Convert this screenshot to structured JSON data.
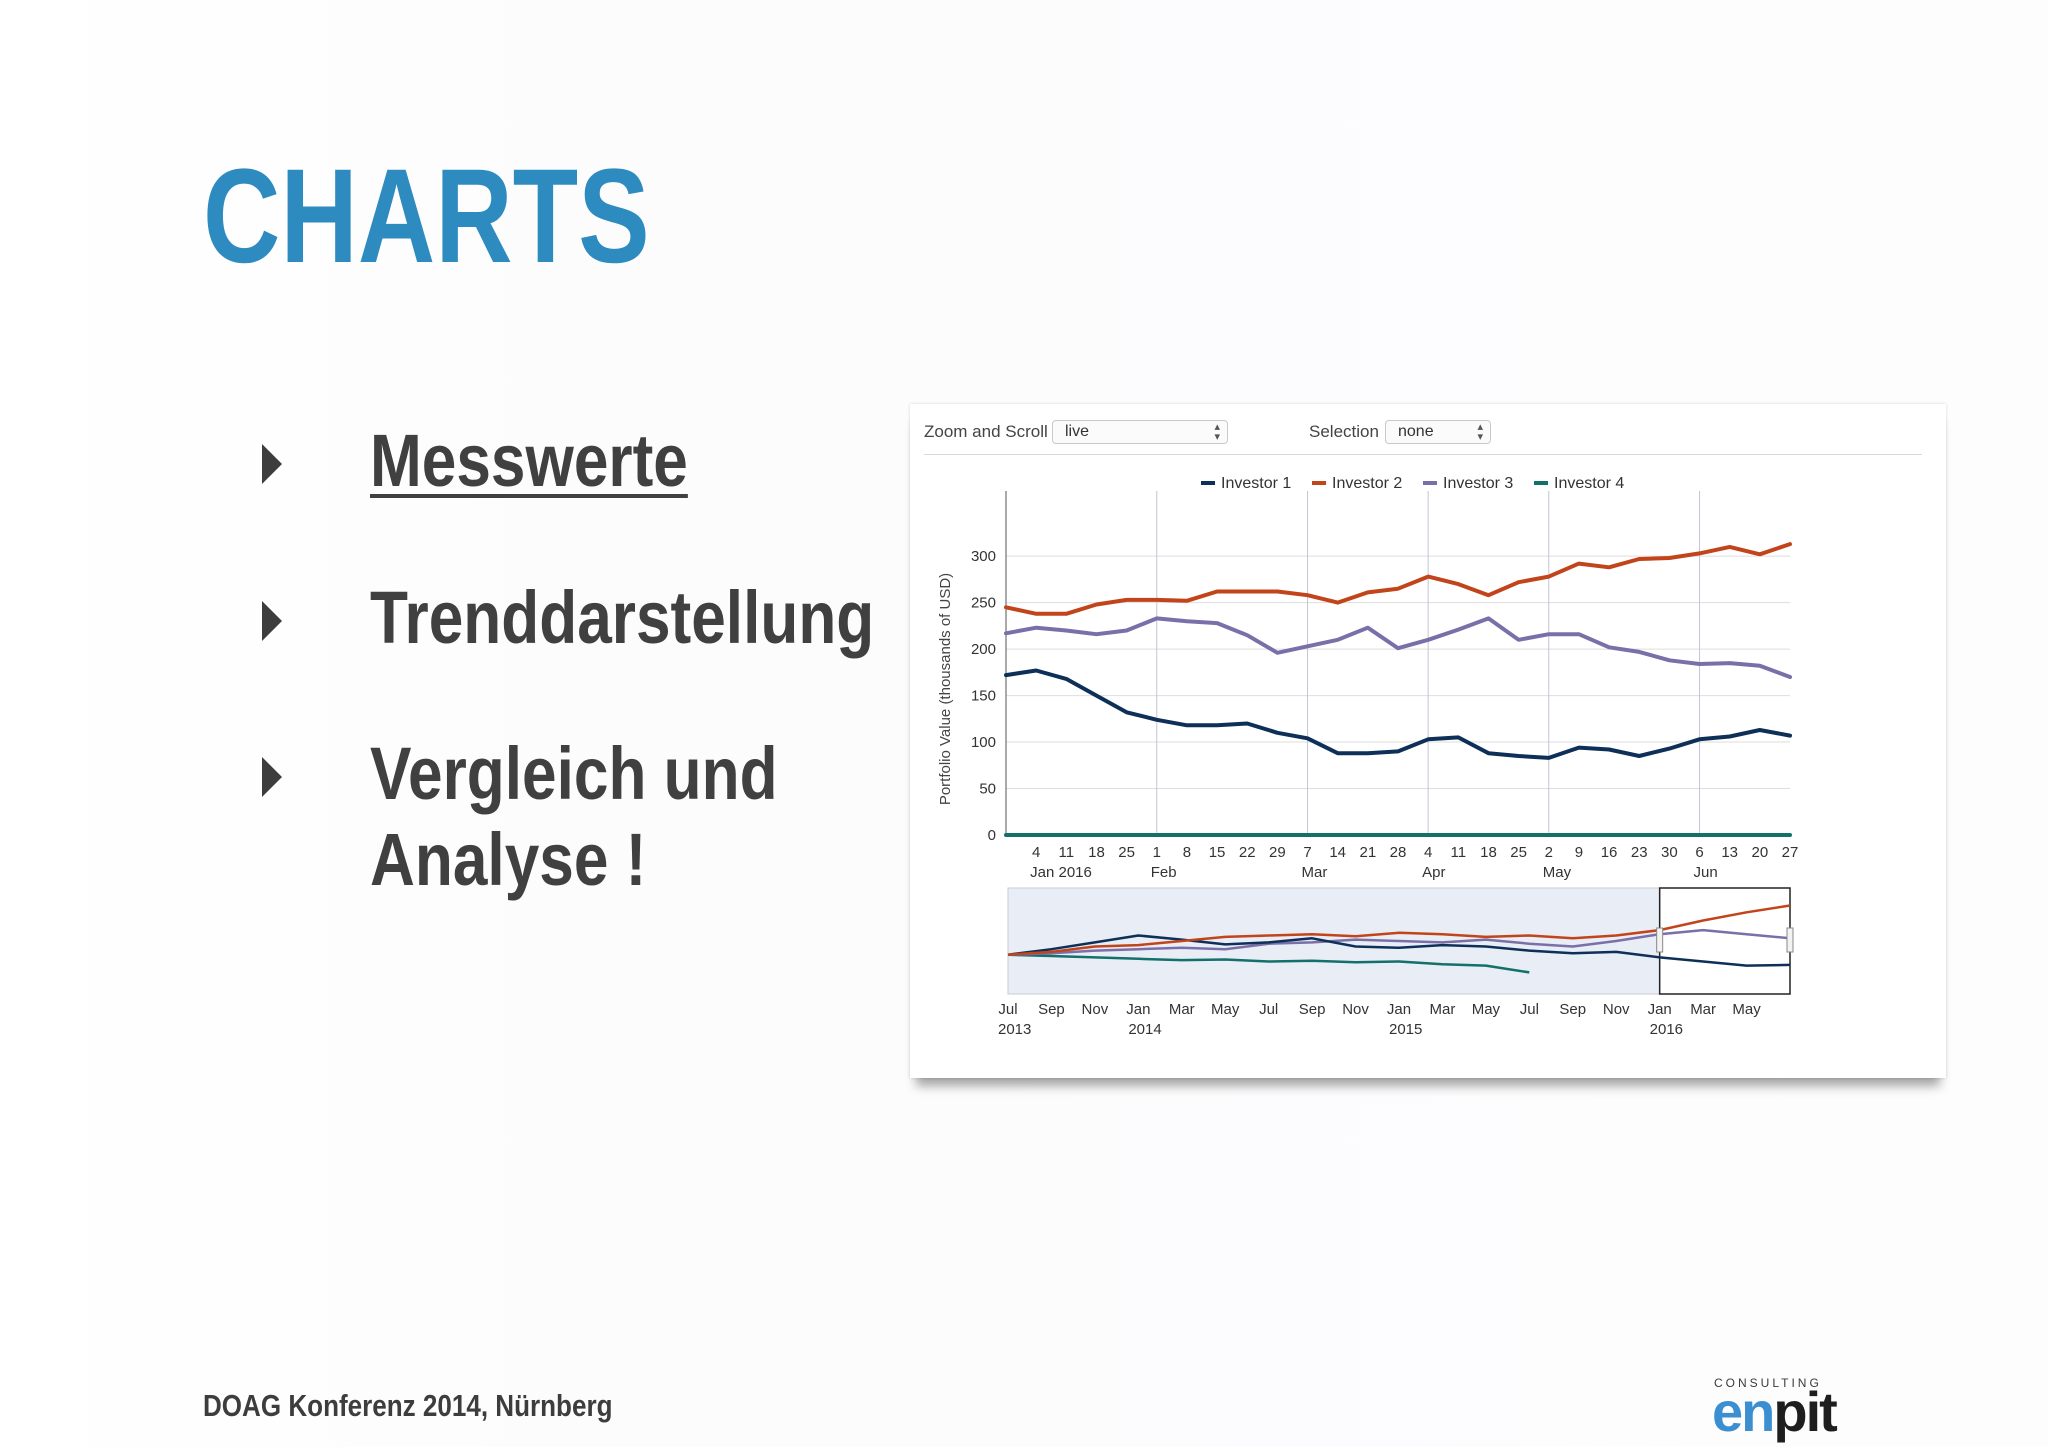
{
  "slide": {
    "title": "CHARTS",
    "bullets": [
      {
        "label": "Messwerte"
      },
      {
        "label": "Trenddarstellung"
      },
      {
        "label": "Vergleich und"
      },
      {
        "label": "Analyse !"
      }
    ],
    "footer": "DOAG Konferenz 2014, Nürnberg",
    "logo": {
      "small": "CONSULTING",
      "en": "en",
      "pit": "pit"
    }
  },
  "controls": {
    "zoom_label": "Zoom and Scroll",
    "zoom_value": "live",
    "selection_label": "Selection",
    "selection_value": "none"
  },
  "colors": {
    "Investor 1": "#0d2f58",
    "Investor 2": "#c2441a",
    "Investor 3": "#7a6fa8",
    "Investor 4": "#13706b"
  },
  "chart_data": [
    {
      "type": "line",
      "ylabel": "Portfolio Value (thousands of USD)",
      "ylim": [
        0,
        340
      ],
      "yticks": [
        0,
        50,
        100,
        150,
        200,
        250,
        300
      ],
      "legend_position": "top",
      "grid": true,
      "x_tick_labels": [
        "4",
        "11",
        "18",
        "25",
        "1",
        "8",
        "15",
        "22",
        "29",
        "7",
        "14",
        "21",
        "28",
        "4",
        "11",
        "18",
        "25",
        "2",
        "9",
        "16",
        "23",
        "30",
        "6",
        "13",
        "20",
        "27"
      ],
      "x_month_labels": [
        {
          "at": "4",
          "text": "Jan 2016"
        },
        {
          "at": "1",
          "text": "Feb"
        },
        {
          "at": "7",
          "text": "Mar"
        },
        {
          "at": "4",
          "text": "Apr"
        },
        {
          "at": "2",
          "text": "May"
        },
        {
          "at": "6",
          "text": "Jun"
        }
      ],
      "x_points": [
        "Jan 1",
        "Jan 4",
        "Jan 11",
        "Jan 18",
        "Jan 25",
        "Feb 1",
        "Feb 8",
        "Feb 15",
        "Feb 22",
        "Feb 29",
        "Mar 7",
        "Mar 14",
        "Mar 21",
        "Mar 28",
        "Apr 4",
        "Apr 11",
        "Apr 18",
        "Apr 25",
        "May 2",
        "May 9",
        "May 16",
        "May 23",
        "May 30",
        "Jun 6",
        "Jun 13",
        "Jun 20",
        "Jun 27"
      ],
      "series": [
        {
          "name": "Investor 1",
          "values": [
            172,
            177,
            168,
            150,
            132,
            124,
            118,
            118,
            120,
            110,
            104,
            88,
            88,
            90,
            103,
            105,
            88,
            85,
            83,
            94,
            92,
            85,
            93,
            103,
            106,
            113,
            107
          ]
        },
        {
          "name": "Investor 2",
          "values": [
            245,
            238,
            238,
            248,
            253,
            253,
            252,
            262,
            262,
            262,
            258,
            250,
            261,
            265,
            278,
            270,
            258,
            272,
            278,
            292,
            288,
            297,
            298,
            303,
            310,
            302,
            313
          ]
        },
        {
          "name": "Investor 3",
          "values": [
            217,
            223,
            220,
            216,
            220,
            233,
            230,
            228,
            215,
            196,
            203,
            210,
            223,
            201,
            210,
            221,
            233,
            210,
            216,
            216,
            202,
            197,
            188,
            184,
            185,
            182,
            170
          ]
        },
        {
          "name": "Investor 4",
          "values": [
            0,
            0,
            0,
            0,
            0,
            0,
            0,
            0,
            0,
            0,
            0,
            0,
            0,
            0,
            0,
            0,
            0,
            0,
            0,
            0,
            0,
            0,
            0,
            0,
            0,
            0,
            0
          ]
        }
      ]
    },
    {
      "type": "line",
      "x_tick_labels": [
        "Jul",
        "Sep",
        "Nov",
        "Jan",
        "Mar",
        "May",
        "Jul",
        "Sep",
        "Nov",
        "Jan",
        "Mar",
        "May",
        "Jul",
        "Sep",
        "Nov",
        "Jan",
        "Mar",
        "May"
      ],
      "x_year_labels": [
        {
          "at": "Jul",
          "text": "2013"
        },
        {
          "at": "Jan",
          "text": "2014"
        },
        {
          "at": "Jan",
          "text": "2015"
        },
        {
          "at": "Jan",
          "text": "2016"
        }
      ],
      "x_points": [
        "Jul 2013",
        "Sep 2013",
        "Nov 2013",
        "Jan 2014",
        "Mar 2014",
        "May 2014",
        "Jul 2014",
        "Sep 2014",
        "Nov 2014",
        "Jan 2015",
        "Mar 2015",
        "May 2015",
        "Jul 2015",
        "Sep 2015",
        "Nov 2015",
        "Jan 2016",
        "Mar 2016",
        "May 2016",
        "Jun 2016"
      ],
      "selected_range": [
        "Jan 2016",
        "Jun 2016"
      ],
      "series": [
        {
          "name": "Investor 1",
          "values": [
            100,
            108,
            118,
            128,
            122,
            115,
            118,
            124,
            112,
            110,
            114,
            112,
            106,
            102,
            104,
            96,
            90,
            84,
            85
          ]
        },
        {
          "name": "Investor 2",
          "values": [
            100,
            104,
            112,
            114,
            120,
            126,
            128,
            130,
            127,
            132,
            130,
            126,
            128,
            124,
            128,
            136,
            150,
            162,
            172
          ]
        },
        {
          "name": "Investor 3",
          "values": [
            100,
            102,
            106,
            108,
            110,
            108,
            116,
            118,
            122,
            120,
            118,
            122,
            116,
            112,
            120,
            130,
            136,
            130,
            124
          ]
        },
        {
          "name": "Investor 4",
          "values": [
            100,
            98,
            96,
            94,
            92,
            93,
            90,
            91,
            89,
            90,
            86,
            84,
            74,
            null,
            null,
            null,
            null,
            null,
            null
          ]
        }
      ]
    }
  ]
}
